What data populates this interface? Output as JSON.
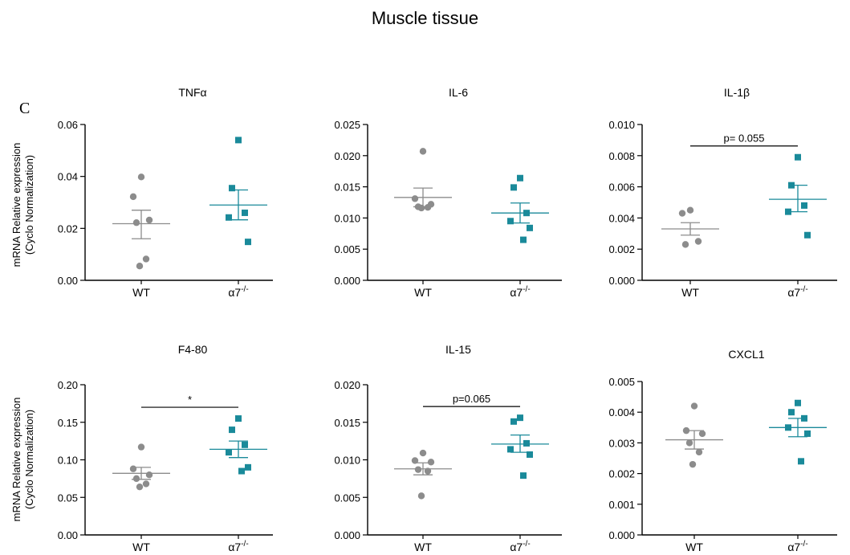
{
  "figure": {
    "title": "Muscle tissue",
    "panel_letter": "C",
    "ylabel_line1": "mRNA Relative expression",
    "ylabel_line2": "(Cyclo Normalization)",
    "colors": {
      "wt": "#8c8c8c",
      "ko": "#1a8a9a"
    }
  },
  "chart_data": [
    {
      "type": "scatter",
      "title": "TNFα",
      "categories": [
        "WT",
        "α7-/-"
      ],
      "ylim": [
        0,
        0.06
      ],
      "yticks": [
        "0.00",
        "0.02",
        "0.04",
        "0.06"
      ],
      "annotation": "",
      "series": [
        {
          "name": "WT",
          "values": [
            0.0398,
            0.0322,
            0.0232,
            0.0222,
            0.0082,
            0.0055
          ],
          "mean": 0.0218,
          "sem_low": 0.016,
          "sem_high": 0.027
        },
        {
          "name": "α7-/-",
          "values": [
            0.054,
            0.0355,
            0.026,
            0.0242,
            0.0148
          ],
          "mean": 0.029,
          "sem_low": 0.0233,
          "sem_high": 0.0348
        }
      ]
    },
    {
      "type": "scatter",
      "title": "IL-6",
      "categories": [
        "WT",
        "α7-/-"
      ],
      "ylim": [
        0,
        0.025
      ],
      "yticks": [
        "0.000",
        "0.005",
        "0.010",
        "0.015",
        "0.020",
        "0.025"
      ],
      "annotation": "",
      "series": [
        {
          "name": "WT",
          "values": [
            0.0207,
            0.0131,
            0.0122,
            0.0118,
            0.0117,
            0.0116
          ],
          "mean": 0.0133,
          "sem_low": 0.0118,
          "sem_high": 0.0148
        },
        {
          "name": "α7-/-",
          "values": [
            0.0164,
            0.0149,
            0.0108,
            0.0095,
            0.0084,
            0.0065
          ],
          "mean": 0.0108,
          "sem_low": 0.0092,
          "sem_high": 0.0124
        }
      ]
    },
    {
      "type": "scatter",
      "title": "IL-1β",
      "categories": [
        "WT",
        "α7-/-"
      ],
      "ylim": [
        0,
        0.01
      ],
      "yticks": [
        "0.000",
        "0.002",
        "0.004",
        "0.006",
        "0.008",
        "0.010"
      ],
      "annotation": "p= 0.055",
      "series": [
        {
          "name": "WT",
          "values": [
            0.0045,
            0.0043,
            0.0025,
            0.0023
          ],
          "mean": 0.0033,
          "sem_low": 0.0029,
          "sem_high": 0.0037
        },
        {
          "name": "α7-/-",
          "values": [
            0.0079,
            0.0061,
            0.0048,
            0.0044,
            0.0029
          ],
          "mean": 0.0052,
          "sem_low": 0.0044,
          "sem_high": 0.0061
        }
      ]
    },
    {
      "type": "scatter",
      "title": "F4-80",
      "categories": [
        "WT",
        "α7-/-"
      ],
      "ylim": [
        0,
        0.2
      ],
      "yticks": [
        "0.00",
        "0.05",
        "0.10",
        "0.15",
        "0.20"
      ],
      "annotation": "*",
      "series": [
        {
          "name": "WT",
          "values": [
            0.117,
            0.088,
            0.08,
            0.075,
            0.068,
            0.064
          ],
          "mean": 0.082,
          "sem_low": 0.074,
          "sem_high": 0.09
        },
        {
          "name": "α7-/-",
          "values": [
            0.155,
            0.14,
            0.12,
            0.11,
            0.09,
            0.085
          ],
          "mean": 0.114,
          "sem_low": 0.103,
          "sem_high": 0.125
        }
      ]
    },
    {
      "type": "scatter",
      "title": "IL-15",
      "categories": [
        "WT",
        "α7-/-"
      ],
      "ylim": [
        0,
        0.02
      ],
      "yticks": [
        "0.000",
        "0.005",
        "0.010",
        "0.015",
        "0.020"
      ],
      "annotation": "p=0.065",
      "series": [
        {
          "name": "WT",
          "values": [
            0.0109,
            0.0099,
            0.0097,
            0.0087,
            0.0085,
            0.0052
          ],
          "mean": 0.0088,
          "sem_low": 0.008,
          "sem_high": 0.0096
        },
        {
          "name": "α7-/-",
          "values": [
            0.0156,
            0.0151,
            0.0122,
            0.0114,
            0.0107,
            0.0079
          ],
          "mean": 0.0121,
          "sem_low": 0.011,
          "sem_high": 0.0133
        }
      ]
    },
    {
      "type": "scatter",
      "title": "CXCL1",
      "categories": [
        "WT",
        "α7-/-"
      ],
      "ylim": [
        0,
        0.005
      ],
      "yticks": [
        "0.000",
        "0.001",
        "0.002",
        "0.003",
        "0.004",
        "0.005"
      ],
      "annotation": "",
      "series": [
        {
          "name": "WT",
          "values": [
            0.0042,
            0.0034,
            0.0033,
            0.003,
            0.0027,
            0.0023
          ],
          "mean": 0.0031,
          "sem_low": 0.0028,
          "sem_high": 0.0034
        },
        {
          "name": "α7-/-",
          "values": [
            0.0043,
            0.004,
            0.0038,
            0.0035,
            0.0033,
            0.0024
          ],
          "mean": 0.0035,
          "sem_low": 0.0032,
          "sem_high": 0.0038
        }
      ]
    }
  ]
}
